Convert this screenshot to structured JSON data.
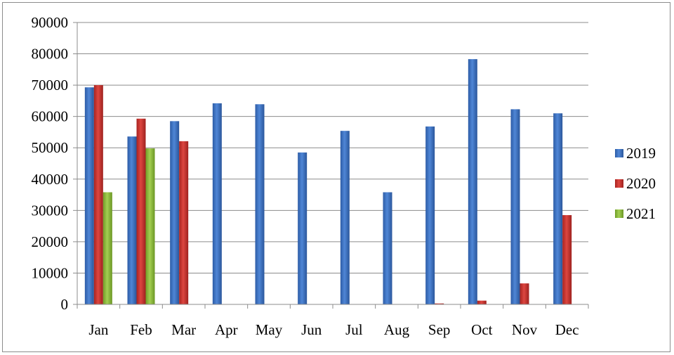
{
  "chart_data": {
    "type": "bar",
    "categories": [
      "Jan",
      "Feb",
      "Mar",
      "Apr",
      "May",
      "Jun",
      "Jul",
      "Aug",
      "Sep",
      "Oct",
      "Nov",
      "Dec"
    ],
    "series": [
      {
        "name": "2019",
        "color": "#3f73c1",
        "values": [
          69300,
          53600,
          58500,
          64200,
          63900,
          48500,
          55400,
          35800,
          56800,
          78300,
          62300,
          61000
        ]
      },
      {
        "name": "2020",
        "color": "#c9312c",
        "values": [
          70000,
          59300,
          52100,
          0,
          0,
          0,
          0,
          0,
          300,
          1200,
          6700,
          28500
        ]
      },
      {
        "name": "2021",
        "color": "#8bbb3a",
        "values": [
          35800,
          49800,
          0,
          0,
          0,
          0,
          0,
          0,
          0,
          0,
          0,
          0
        ]
      }
    ],
    "yticks": [
      "0",
      "10000",
      "20000",
      "30000",
      "40000",
      "50000",
      "60000",
      "70000",
      "80000",
      "90000"
    ],
    "ylim": [
      0,
      90000
    ],
    "grid": true,
    "legend": "right",
    "title": "",
    "xlabel": "",
    "ylabel": ""
  }
}
